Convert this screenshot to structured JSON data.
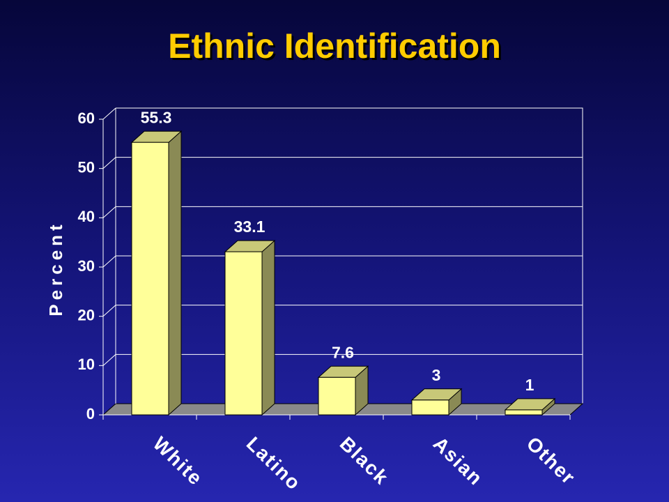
{
  "chart_data": {
    "type": "bar",
    "title": "Ethnic Identification",
    "y_label": "Percent",
    "categories": [
      "White",
      "Latino",
      "Black",
      "Asian",
      "Other"
    ],
    "values": [
      55.3,
      33.1,
      7.6,
      3,
      1
    ],
    "color": "#ffff99",
    "ylim": [
      0,
      60
    ],
    "yticks": [
      0,
      10,
      20,
      30,
      40,
      50,
      60
    ],
    "grid": true
  }
}
